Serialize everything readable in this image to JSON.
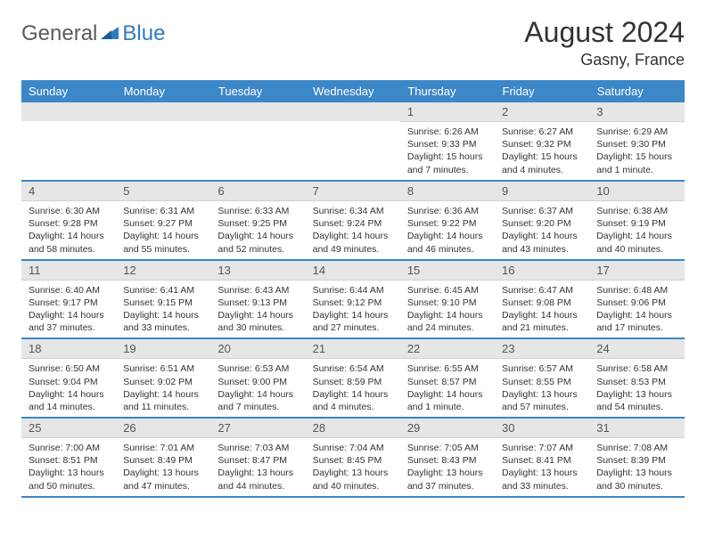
{
  "logo": {
    "general": "General",
    "blue": "Blue"
  },
  "title": "August 2024",
  "location": "Gasny, France",
  "headers": [
    "Sunday",
    "Monday",
    "Tuesday",
    "Wednesday",
    "Thursday",
    "Friday",
    "Saturday"
  ],
  "colors": {
    "header_bg": "#3b87c8",
    "header_fg": "#ffffff",
    "daynum_bg": "#e6e6e6",
    "border": "#3b87c8",
    "logo_blue": "#2f7bbd",
    "logo_gray": "#5b5b5b"
  },
  "weeks": [
    [
      null,
      null,
      null,
      null,
      {
        "n": "1",
        "sr": "Sunrise: 6:26 AM",
        "ss": "Sunset: 9:33 PM",
        "dl": "Daylight: 15 hours and 7 minutes."
      },
      {
        "n": "2",
        "sr": "Sunrise: 6:27 AM",
        "ss": "Sunset: 9:32 PM",
        "dl": "Daylight: 15 hours and 4 minutes."
      },
      {
        "n": "3",
        "sr": "Sunrise: 6:29 AM",
        "ss": "Sunset: 9:30 PM",
        "dl": "Daylight: 15 hours and 1 minute."
      }
    ],
    [
      {
        "n": "4",
        "sr": "Sunrise: 6:30 AM",
        "ss": "Sunset: 9:28 PM",
        "dl": "Daylight: 14 hours and 58 minutes."
      },
      {
        "n": "5",
        "sr": "Sunrise: 6:31 AM",
        "ss": "Sunset: 9:27 PM",
        "dl": "Daylight: 14 hours and 55 minutes."
      },
      {
        "n": "6",
        "sr": "Sunrise: 6:33 AM",
        "ss": "Sunset: 9:25 PM",
        "dl": "Daylight: 14 hours and 52 minutes."
      },
      {
        "n": "7",
        "sr": "Sunrise: 6:34 AM",
        "ss": "Sunset: 9:24 PM",
        "dl": "Daylight: 14 hours and 49 minutes."
      },
      {
        "n": "8",
        "sr": "Sunrise: 6:36 AM",
        "ss": "Sunset: 9:22 PM",
        "dl": "Daylight: 14 hours and 46 minutes."
      },
      {
        "n": "9",
        "sr": "Sunrise: 6:37 AM",
        "ss": "Sunset: 9:20 PM",
        "dl": "Daylight: 14 hours and 43 minutes."
      },
      {
        "n": "10",
        "sr": "Sunrise: 6:38 AM",
        "ss": "Sunset: 9:19 PM",
        "dl": "Daylight: 14 hours and 40 minutes."
      }
    ],
    [
      {
        "n": "11",
        "sr": "Sunrise: 6:40 AM",
        "ss": "Sunset: 9:17 PM",
        "dl": "Daylight: 14 hours and 37 minutes."
      },
      {
        "n": "12",
        "sr": "Sunrise: 6:41 AM",
        "ss": "Sunset: 9:15 PM",
        "dl": "Daylight: 14 hours and 33 minutes."
      },
      {
        "n": "13",
        "sr": "Sunrise: 6:43 AM",
        "ss": "Sunset: 9:13 PM",
        "dl": "Daylight: 14 hours and 30 minutes."
      },
      {
        "n": "14",
        "sr": "Sunrise: 6:44 AM",
        "ss": "Sunset: 9:12 PM",
        "dl": "Daylight: 14 hours and 27 minutes."
      },
      {
        "n": "15",
        "sr": "Sunrise: 6:45 AM",
        "ss": "Sunset: 9:10 PM",
        "dl": "Daylight: 14 hours and 24 minutes."
      },
      {
        "n": "16",
        "sr": "Sunrise: 6:47 AM",
        "ss": "Sunset: 9:08 PM",
        "dl": "Daylight: 14 hours and 21 minutes."
      },
      {
        "n": "17",
        "sr": "Sunrise: 6:48 AM",
        "ss": "Sunset: 9:06 PM",
        "dl": "Daylight: 14 hours and 17 minutes."
      }
    ],
    [
      {
        "n": "18",
        "sr": "Sunrise: 6:50 AM",
        "ss": "Sunset: 9:04 PM",
        "dl": "Daylight: 14 hours and 14 minutes."
      },
      {
        "n": "19",
        "sr": "Sunrise: 6:51 AM",
        "ss": "Sunset: 9:02 PM",
        "dl": "Daylight: 14 hours and 11 minutes."
      },
      {
        "n": "20",
        "sr": "Sunrise: 6:53 AM",
        "ss": "Sunset: 9:00 PM",
        "dl": "Daylight: 14 hours and 7 minutes."
      },
      {
        "n": "21",
        "sr": "Sunrise: 6:54 AM",
        "ss": "Sunset: 8:59 PM",
        "dl": "Daylight: 14 hours and 4 minutes."
      },
      {
        "n": "22",
        "sr": "Sunrise: 6:55 AM",
        "ss": "Sunset: 8:57 PM",
        "dl": "Daylight: 14 hours and 1 minute."
      },
      {
        "n": "23",
        "sr": "Sunrise: 6:57 AM",
        "ss": "Sunset: 8:55 PM",
        "dl": "Daylight: 13 hours and 57 minutes."
      },
      {
        "n": "24",
        "sr": "Sunrise: 6:58 AM",
        "ss": "Sunset: 8:53 PM",
        "dl": "Daylight: 13 hours and 54 minutes."
      }
    ],
    [
      {
        "n": "25",
        "sr": "Sunrise: 7:00 AM",
        "ss": "Sunset: 8:51 PM",
        "dl": "Daylight: 13 hours and 50 minutes."
      },
      {
        "n": "26",
        "sr": "Sunrise: 7:01 AM",
        "ss": "Sunset: 8:49 PM",
        "dl": "Daylight: 13 hours and 47 minutes."
      },
      {
        "n": "27",
        "sr": "Sunrise: 7:03 AM",
        "ss": "Sunset: 8:47 PM",
        "dl": "Daylight: 13 hours and 44 minutes."
      },
      {
        "n": "28",
        "sr": "Sunrise: 7:04 AM",
        "ss": "Sunset: 8:45 PM",
        "dl": "Daylight: 13 hours and 40 minutes."
      },
      {
        "n": "29",
        "sr": "Sunrise: 7:05 AM",
        "ss": "Sunset: 8:43 PM",
        "dl": "Daylight: 13 hours and 37 minutes."
      },
      {
        "n": "30",
        "sr": "Sunrise: 7:07 AM",
        "ss": "Sunset: 8:41 PM",
        "dl": "Daylight: 13 hours and 33 minutes."
      },
      {
        "n": "31",
        "sr": "Sunrise: 7:08 AM",
        "ss": "Sunset: 8:39 PM",
        "dl": "Daylight: 13 hours and 30 minutes."
      }
    ]
  ]
}
